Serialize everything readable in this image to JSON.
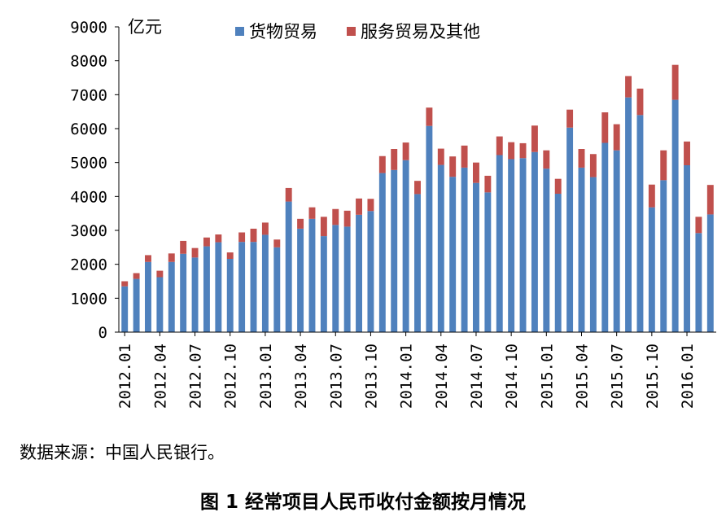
{
  "chart_data": {
    "type": "bar",
    "stacked": true,
    "ylabel": "亿元",
    "ylim": [
      0,
      9000
    ],
    "yticks": [
      0,
      1000,
      2000,
      3000,
      4000,
      5000,
      6000,
      7000,
      8000,
      9000
    ],
    "legend_position": "top",
    "grid": false,
    "categories": [
      "2012.01",
      "2012.02",
      "2012.03",
      "2012.04",
      "2012.05",
      "2012.06",
      "2012.07",
      "2012.08",
      "2012.09",
      "2012.10",
      "2012.11",
      "2012.12",
      "2013.01",
      "2013.02",
      "2013.03",
      "2013.04",
      "2013.05",
      "2013.06",
      "2013.07",
      "2013.08",
      "2013.09",
      "2013.10",
      "2013.11",
      "2013.12",
      "2014.01",
      "2014.02",
      "2014.03",
      "2014.04",
      "2014.05",
      "2014.06",
      "2014.07",
      "2014.08",
      "2014.09",
      "2014.10",
      "2014.11",
      "2014.12",
      "2015.01",
      "2015.02",
      "2015.03",
      "2015.04",
      "2015.05",
      "2015.06",
      "2015.07",
      "2015.08",
      "2015.09",
      "2015.10",
      "2015.11",
      "2015.12",
      "2016.01",
      "2016.02",
      "2016.03"
    ],
    "xtick_labels": [
      "2012.01",
      "2012.04",
      "2012.07",
      "2012.10",
      "2013.01",
      "2013.04",
      "2013.07",
      "2013.10",
      "2014.01",
      "2014.04",
      "2014.07",
      "2014.10",
      "2015.01",
      "2015.04",
      "2015.07",
      "2015.10",
      "2016.01"
    ],
    "series": [
      {
        "name": "货物贸易",
        "color": "#4F81BD",
        "values": [
          1350,
          1570,
          2070,
          1620,
          2070,
          2310,
          2200,
          2530,
          2650,
          2160,
          2660,
          2660,
          2870,
          2500,
          3850,
          3050,
          3340,
          2830,
          3160,
          3110,
          3460,
          3570,
          4690,
          4780,
          5070,
          4070,
          6080,
          4930,
          4580,
          4850,
          4400,
          4120,
          5220,
          5100,
          5130,
          5310,
          4820,
          4080,
          6030,
          4850,
          4570,
          5580,
          5360,
          6920,
          6400,
          3680,
          4480,
          6850,
          4920,
          2920,
          3470
        ]
      },
      {
        "name": "服务贸易及其他",
        "color": "#C0504D",
        "values": [
          150,
          170,
          200,
          190,
          250,
          380,
          280,
          260,
          230,
          190,
          280,
          390,
          360,
          230,
          400,
          290,
          340,
          570,
          470,
          470,
          480,
          360,
          500,
          620,
          520,
          390,
          540,
          480,
          600,
          650,
          600,
          490,
          550,
          500,
          440,
          780,
          540,
          440,
          530,
          550,
          680,
          900,
          770,
          630,
          780,
          670,
          880,
          1030,
          700,
          480,
          870
        ]
      }
    ]
  },
  "source_note": "数据来源：中国人民银行。",
  "figure_caption": "图 1 经常项目人民币收付金额按月情况"
}
